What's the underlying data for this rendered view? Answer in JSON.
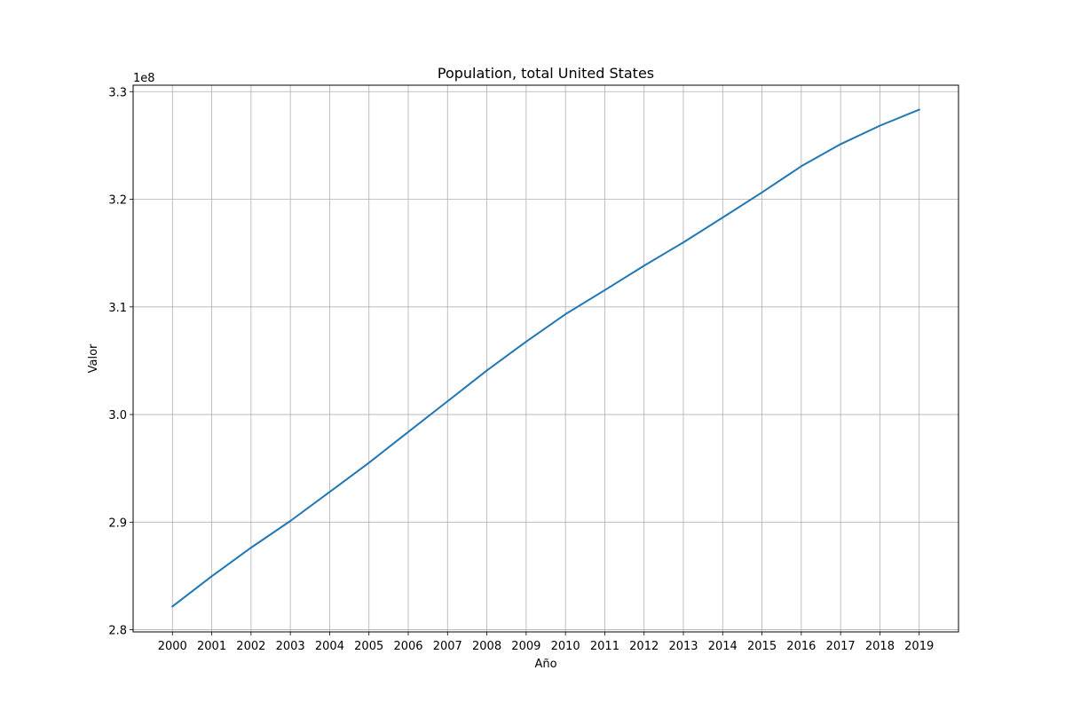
{
  "chart_data": {
    "type": "line",
    "title": "Population, total United States",
    "xlabel": "Año",
    "ylabel": "Valor",
    "y_offset_label": "1e8",
    "x": [
      2000,
      2001,
      2002,
      2003,
      2004,
      2005,
      2006,
      2007,
      2008,
      2009,
      2010,
      2011,
      2012,
      2013,
      2014,
      2015,
      2016,
      2017,
      2018,
      2019
    ],
    "x_tick_labels": [
      "2000",
      "2001",
      "2002",
      "2003",
      "2004",
      "2005",
      "2006",
      "2007",
      "2008",
      "2009",
      "2010",
      "2011",
      "2012",
      "2013",
      "2014",
      "2015",
      "2016",
      "2017",
      "2018",
      "2019"
    ],
    "series": [
      {
        "values": [
          282162411,
          284968955,
          287625193,
          290107933,
          292805298,
          295516599,
          298379912,
          301231207,
          304093966,
          306771529,
          309321666,
          311556874,
          313830990,
          315993715,
          318301008,
          320635163,
          323071755,
          325122128,
          326838199,
          328329953
        ],
        "color": "#1f77b4"
      }
    ],
    "ylim": [
      2.798,
      3.306
    ],
    "y_tick_values": [
      2.8,
      2.9,
      3.0,
      3.1,
      3.2,
      3.3
    ],
    "y_tick_labels": [
      "2.8",
      "2.9",
      "3.0",
      "3.1",
      "3.2",
      "3.3"
    ],
    "xlim": [
      1999.0,
      2020.0
    ],
    "grid": true
  }
}
